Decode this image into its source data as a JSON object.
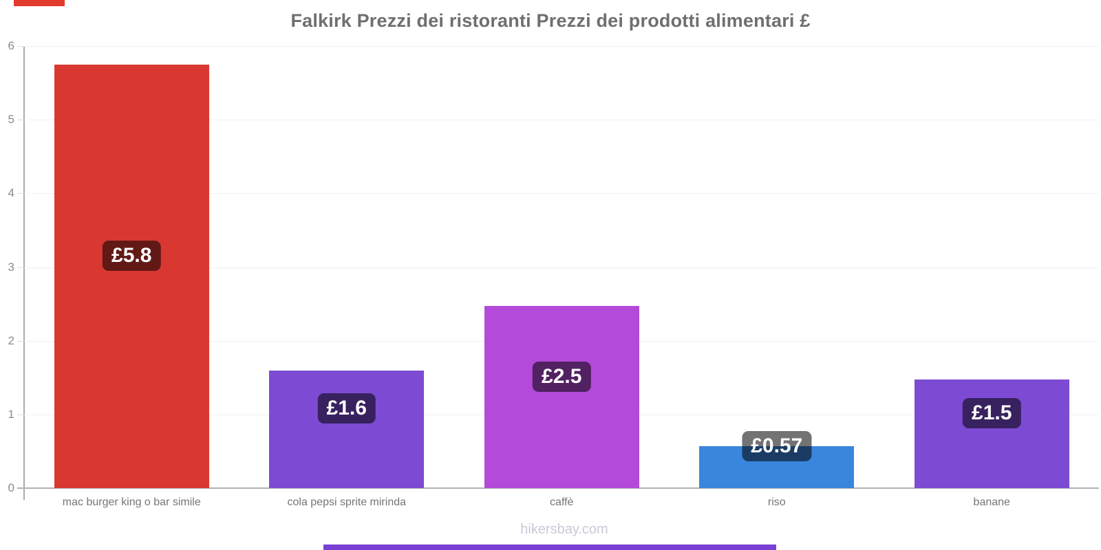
{
  "title": "Falkirk Prezzi dei ristoranti Prezzi dei prodotti alimentari £",
  "footer": "hikersbay.com",
  "chart_data": {
    "type": "bar",
    "title": "Falkirk Prezzi dei ristoranti Prezzi dei prodotti alimentari £",
    "xlabel": "",
    "ylabel": "",
    "currency": "£",
    "categories": [
      "mac burger king o bar simile",
      "cola pepsi sprite mirinda",
      "caffè",
      "riso",
      "banane"
    ],
    "values": [
      5.75,
      1.6,
      2.47,
      0.57,
      1.47
    ],
    "value_labels": [
      "£5.8",
      "£1.6",
      "£2.5",
      "£0.57",
      "£1.5"
    ],
    "bar_colors": [
      "#d93832",
      "#7d4bd3",
      "#b44ad9",
      "#3b86dd",
      "#7d4bd3"
    ],
    "badge_color": "rgba(0,0,0,0.55)",
    "ylim": [
      0,
      6
    ],
    "yticks": [
      0,
      1,
      2,
      3,
      4,
      5,
      6
    ],
    "grid": "horizontal",
    "legend": "none"
  },
  "decorations": {
    "top_left_bar_color": "#e23a2e",
    "bottom_bar_color": "#7a3fd4"
  }
}
